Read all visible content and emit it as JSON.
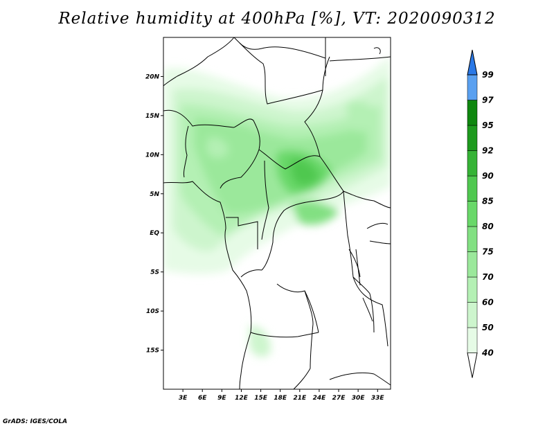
{
  "title": "Relative humidity at 400hPa [%], VT: 2020090312",
  "credit": "GrADS: IGES/COLA",
  "map": {
    "lat_ticks": [
      "20N",
      "15N",
      "10N",
      "5N",
      "EQ",
      "5S",
      "10S",
      "15S"
    ],
    "lat_values": [
      20,
      15,
      10,
      5,
      0,
      -5,
      -10,
      -15
    ],
    "lon_ticks": [
      "3E",
      "6E",
      "9E",
      "12E",
      "15E",
      "18E",
      "21E",
      "24E",
      "27E",
      "30E",
      "33E"
    ],
    "lon_values": [
      3,
      6,
      9,
      12,
      15,
      18,
      21,
      24,
      27,
      30,
      33
    ],
    "lon_range": [
      0,
      35
    ],
    "lat_range": [
      -20,
      25
    ]
  },
  "colorbar": {
    "levels": [
      "40",
      "50",
      "60",
      "70",
      "75",
      "80",
      "85",
      "90",
      "92",
      "95",
      "97",
      "99"
    ],
    "colors": [
      "#e6fbe6",
      "#cdf5cd",
      "#b4f0b4",
      "#9be89b",
      "#82e082",
      "#69d869",
      "#50c850",
      "#36b336",
      "#1e9a1e",
      "#0f870f",
      "#5aa0f0",
      "#2a78e6",
      "#1f5fcc"
    ]
  }
}
